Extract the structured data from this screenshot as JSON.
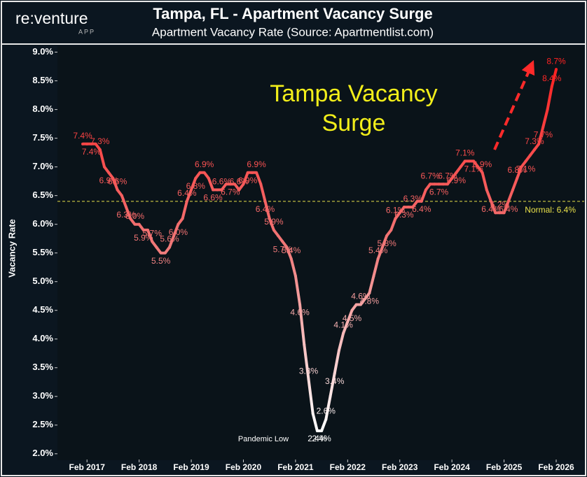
{
  "logo": {
    "name": "re:venture",
    "sub": "APP"
  },
  "chart_data": {
    "type": "line",
    "title": "Tampa, FL - Apartment Vacancy Surge",
    "subtitle": "Apartment Vacancy Rate (Source: Apartmentlist.com)",
    "y_label": "Vacancy Rate",
    "annotations": {
      "headline": [
        "Tampa Vacancy",
        "Surge"
      ],
      "low": "Pandemic Low"
    },
    "reference_line": {
      "value": 6.4,
      "label": "Normal: 6.4%",
      "color": "#e8e04a"
    },
    "ylim": [
      1.9,
      9.08
    ],
    "yticks": [
      {
        "value": 2.0,
        "label": "2.0%"
      },
      {
        "value": 2.5,
        "label": "2.5%"
      },
      {
        "value": 3.0,
        "label": "3.0%"
      },
      {
        "value": 3.5,
        "label": "3.5%"
      },
      {
        "value": 4.0,
        "label": "4.0%"
      },
      {
        "value": 4.5,
        "label": "4.5%"
      },
      {
        "value": 5.0,
        "label": "5.0%"
      },
      {
        "value": 5.5,
        "label": "5.5%"
      },
      {
        "value": 6.0,
        "label": "6.0%"
      },
      {
        "value": 6.5,
        "label": "6.5%"
      },
      {
        "value": 7.0,
        "label": "7.0%"
      },
      {
        "value": 7.5,
        "label": "7.5%"
      },
      {
        "value": 8.0,
        "label": "8.0%"
      },
      {
        "value": 8.5,
        "label": "8.5%"
      },
      {
        "value": 9.0,
        "label": "9.0%"
      }
    ],
    "gradient": [
      "#ffffff",
      "#f07a7a",
      "#ff2222"
    ],
    "categories": [
      null,
      "Feb 2017",
      null,
      null,
      null,
      null,
      null,
      null,
      null,
      null,
      null,
      null,
      null,
      "Feb 2018",
      null,
      null,
      null,
      null,
      null,
      null,
      null,
      null,
      null,
      null,
      null,
      "Feb 2019",
      null,
      null,
      null,
      null,
      null,
      null,
      null,
      null,
      null,
      null,
      null,
      "Feb 2020",
      null,
      null,
      null,
      null,
      null,
      null,
      null,
      null,
      null,
      null,
      null,
      "Feb 2021",
      null,
      null,
      null,
      null,
      null,
      null,
      null,
      null,
      null,
      null,
      null,
      "Feb 2022",
      null,
      null,
      null,
      null,
      null,
      null,
      null,
      null,
      null,
      null,
      null,
      "Feb 2023",
      null,
      null,
      null,
      null,
      null,
      null,
      null,
      null,
      null,
      null,
      null,
      "Feb 2024",
      null,
      null,
      null,
      null,
      null,
      null,
      null,
      null,
      null,
      null,
      null,
      "Feb 2025",
      null,
      null,
      null,
      null,
      null,
      null,
      null,
      null,
      null,
      null,
      null,
      "Feb 2026"
    ],
    "values": [
      7.4,
      7.4,
      7.4,
      7.4,
      7.3,
      7.0,
      6.9,
      6.8,
      6.6,
      6.5,
      6.3,
      6.1,
      6.0,
      6.0,
      5.9,
      5.9,
      5.7,
      5.6,
      5.5,
      5.5,
      5.6,
      5.8,
      6.0,
      6.1,
      6.4,
      6.6,
      6.8,
      6.9,
      6.9,
      6.8,
      6.6,
      6.6,
      6.6,
      6.7,
      6.7,
      6.7,
      6.6,
      6.7,
      6.9,
      6.9,
      6.9,
      6.7,
      6.4,
      6.1,
      5.9,
      5.8,
      5.7,
      5.6,
      5.4,
      5.1,
      4.6,
      3.9,
      3.3,
      2.7,
      2.4,
      2.4,
      2.6,
      3.0,
      3.4,
      3.8,
      4.1,
      4.3,
      4.5,
      4.6,
      4.6,
      4.7,
      4.8,
      5.1,
      5.4,
      5.6,
      5.8,
      5.9,
      6.1,
      6.2,
      6.3,
      6.3,
      6.3,
      6.4,
      6.4,
      6.6,
      6.7,
      6.7,
      6.7,
      6.7,
      6.7,
      6.8,
      6.9,
      7.0,
      7.1,
      7.1,
      7.1,
      7.0,
      6.9,
      6.6,
      6.4,
      6.2,
      6.2,
      6.2,
      6.4,
      6.6,
      6.8,
      7.0,
      7.1,
      7.2,
      7.3,
      7.4,
      7.7,
      8.0,
      8.4,
      8.7
    ],
    "value_labels": [
      "7.4%",
      null,
      "7.4%",
      null,
      "7.3%",
      null,
      "6.9%",
      null,
      "6.6%",
      null,
      "6.3%",
      null,
      "6.0%",
      null,
      "5.9%",
      null,
      "5.7%",
      null,
      "5.5%",
      null,
      "5.6%",
      null,
      "6.0%",
      null,
      "6.4%",
      null,
      "6.8%",
      null,
      "6.9%",
      null,
      "6.6%",
      null,
      "6.6%",
      null,
      "6.7%",
      null,
      "6.6%",
      null,
      "6.9%",
      null,
      "6.9%",
      null,
      "6.4%",
      null,
      "5.9%",
      null,
      "5.7%",
      null,
      "5.4%",
      null,
      "4.6%",
      null,
      "3.3%",
      null,
      "2.4%",
      "2.4%",
      "2.6%",
      null,
      "3.4%",
      null,
      "4.1%",
      null,
      "4.5%",
      null,
      "4.6%",
      null,
      "4.8%",
      null,
      "5.4%",
      null,
      "5.8%",
      null,
      "6.1%",
      null,
      "6.3%",
      null,
      "6.3%",
      null,
      "6.4%",
      null,
      "6.7%",
      null,
      "6.7%",
      null,
      "6.7%",
      null,
      "6.9%",
      null,
      "7.1%",
      null,
      "7.1%",
      null,
      "6.9%",
      null,
      "6.4%",
      null,
      "6.2%",
      null,
      "6.4%",
      null,
      "6.8%",
      null,
      "7.1%",
      null,
      "7.3%",
      null,
      "7.7%",
      null,
      "8.4%",
      "8.7%"
    ]
  }
}
